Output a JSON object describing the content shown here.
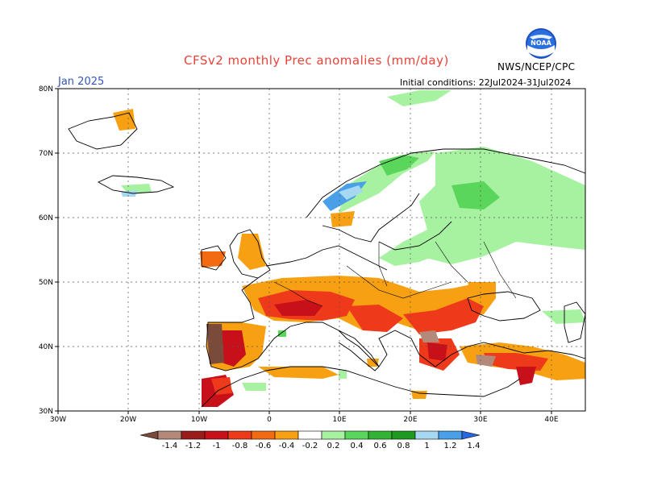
{
  "title": "CFSv2 monthly Prec anomalies (mm/day)",
  "month": "Jan 2025",
  "initial_conditions": "Initial conditions: 22Jul2024-31Jul2024",
  "organization": "NWS/NCEP/CPC",
  "logo_text": "NOAA",
  "lat_labels": [
    "80N",
    "70N",
    "60N",
    "50N",
    "40N",
    "30N"
  ],
  "lon_labels": [
    "30W",
    "20W",
    "10W",
    "0",
    "10E",
    "20E",
    "30E",
    "40E"
  ],
  "colorbar": {
    "labels": [
      "-1.4",
      "-1.2",
      "-1",
      "-0.8",
      "-0.6",
      "-0.4",
      "-0.2",
      "0.2",
      "0.4",
      "0.6",
      "0.8",
      "1",
      "1.2",
      "1.4"
    ],
    "colors": [
      "#7a4a3a",
      "#b38a7a",
      "#9a1c1a",
      "#c8101a",
      "#ee3a1a",
      "#f26a12",
      "#f7a012",
      "#ffffff",
      "#a6f2a0",
      "#5ad65a",
      "#33b333",
      "#1e9a1e",
      "#a6d8f2",
      "#4aa0e8",
      "#2a66dd"
    ]
  },
  "legend": {
    "dry": "dry anomalies (brown/red/orange)",
    "wet": "wet anomalies (green/blue)"
  }
}
